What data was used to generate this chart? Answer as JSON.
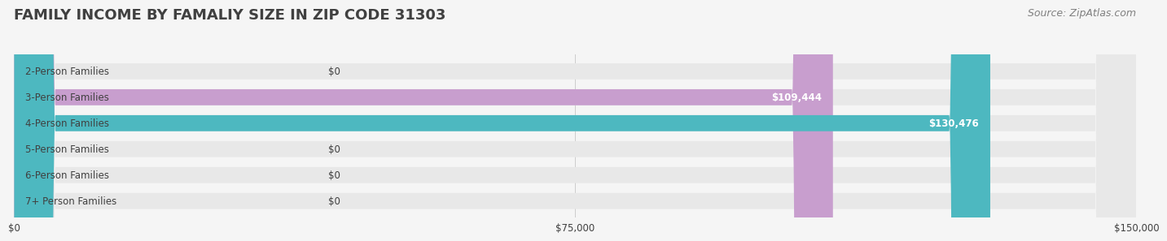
{
  "title": "FAMILY INCOME BY FAMALIY SIZE IN ZIP CODE 31303",
  "source": "Source: ZipAtlas.com",
  "categories": [
    "2-Person Families",
    "3-Person Families",
    "4-Person Families",
    "5-Person Families",
    "6-Person Families",
    "7+ Person Families"
  ],
  "values": [
    0,
    109444,
    130476,
    0,
    0,
    0
  ],
  "bar_colors": [
    "#a8c8e8",
    "#c89ece",
    "#4db8c0",
    "#b0b8e8",
    "#f4a0b0",
    "#f8d8a8"
  ],
  "value_labels": [
    "$0",
    "$109,444",
    "$130,476",
    "$0",
    "$0",
    "$0"
  ],
  "xlim": [
    0,
    150000
  ],
  "xtick_values": [
    0,
    75000,
    150000
  ],
  "xtick_labels": [
    "$0",
    "$75,000",
    "$150,000"
  ],
  "background_color": "#f5f5f5",
  "bar_bg_color": "#e8e8e8",
  "title_color": "#404040",
  "source_color": "#808080",
  "title_fontsize": 13,
  "source_fontsize": 9,
  "label_fontsize": 8.5,
  "value_fontsize": 8.5,
  "tick_fontsize": 8.5
}
